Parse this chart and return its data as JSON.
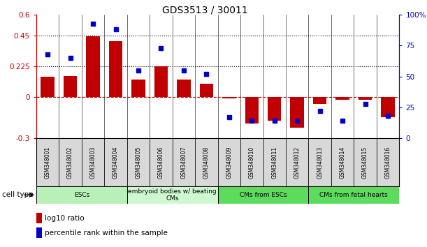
{
  "title": "GDS3513 / 30011",
  "samples": [
    "GSM348001",
    "GSM348002",
    "GSM348003",
    "GSM348004",
    "GSM348005",
    "GSM348006",
    "GSM348007",
    "GSM348008",
    "GSM348009",
    "GSM348010",
    "GSM348011",
    "GSM348012",
    "GSM348013",
    "GSM348014",
    "GSM348015",
    "GSM348016"
  ],
  "log10_ratio": [
    0.15,
    0.155,
    0.445,
    0.41,
    0.13,
    0.225,
    0.13,
    0.1,
    -0.01,
    -0.19,
    -0.17,
    -0.22,
    -0.05,
    -0.02,
    -0.02,
    -0.145
  ],
  "percentile_rank": [
    0.68,
    0.65,
    0.93,
    0.88,
    0.55,
    0.73,
    0.55,
    0.52,
    0.17,
    0.14,
    0.14,
    0.14,
    0.22,
    0.14,
    0.28,
    0.18
  ],
  "bar_color": "#c00000",
  "dot_color": "#0000cc",
  "ylim_left": [
    -0.3,
    0.6
  ],
  "ylim_right": [
    0.0,
    1.0
  ],
  "yticks_left": [
    -0.3,
    0.0,
    0.225,
    0.45,
    0.6
  ],
  "ytick_labels_left": [
    "-0.3",
    "0",
    "0.225",
    "0.45",
    "0.6"
  ],
  "yticks_right": [
    0.0,
    0.25,
    0.5,
    0.75,
    1.0
  ],
  "ytick_labels_right": [
    "0",
    "25",
    "50",
    "75",
    "100%"
  ],
  "hlines": [
    0.225,
    0.45
  ],
  "zero_line": 0.0,
  "cell_type_groups": [
    {
      "label": "ESCs",
      "start": 0,
      "end": 3,
      "color": "#b8f0b8"
    },
    {
      "label": "embryoid bodies w/ beating\nCMs",
      "start": 4,
      "end": 7,
      "color": "#d0f8d0"
    },
    {
      "label": "CMs from ESCs",
      "start": 8,
      "end": 11,
      "color": "#5cdb5c"
    },
    {
      "label": "CMs from fetal hearts",
      "start": 12,
      "end": 15,
      "color": "#5cdb5c"
    }
  ],
  "legend_red_label": "log10 ratio",
  "legend_blue_label": "percentile rank within the sample",
  "cell_type_label": "cell type"
}
